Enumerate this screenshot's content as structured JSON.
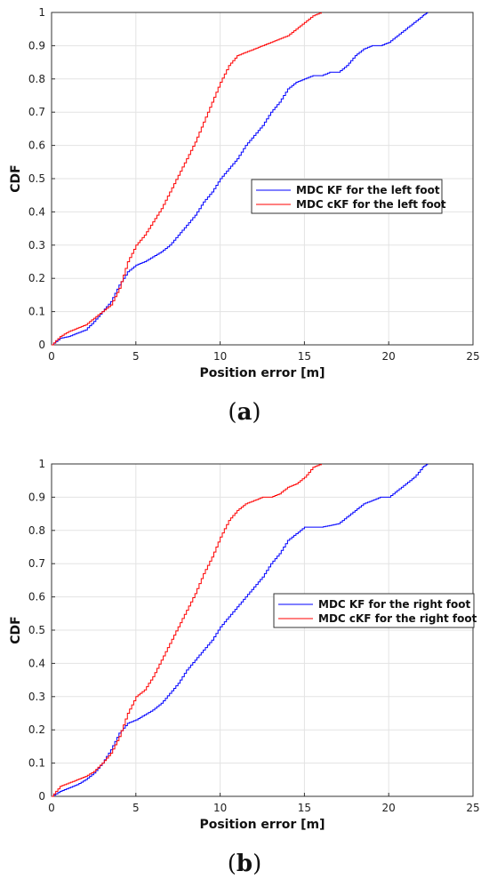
{
  "chart_data": [
    {
      "type": "line",
      "caption": "(a)",
      "caption_letter": "a",
      "xlabel": "Position error [m]",
      "ylabel": "CDF",
      "xlim": [
        0,
        25
      ],
      "ylim": [
        0,
        1
      ],
      "xticks": [
        "0",
        "5",
        "10",
        "15",
        "20",
        "25"
      ],
      "yticks": [
        "0",
        "0.1",
        "0.2",
        "0.3",
        "0.4",
        "0.5",
        "0.6",
        "0.7",
        "0.8",
        "0.9",
        "1"
      ],
      "grid": true,
      "legend_position": "center-right",
      "series": [
        {
          "name": "MDC KF for the left foot",
          "color": "#0000ff",
          "x": [
            0,
            0.5,
            1,
            1.5,
            2,
            2.5,
            3,
            3.5,
            4,
            4.5,
            5,
            5.5,
            6,
            6.5,
            7,
            7.5,
            8,
            8.5,
            9,
            9.5,
            10,
            10.5,
            11,
            11.5,
            12,
            12.5,
            13,
            13.5,
            14,
            14.5,
            15,
            15.5,
            16,
            16.5,
            17,
            17.5,
            18,
            18.5,
            19,
            19.5,
            20,
            20.5,
            21,
            21.5,
            22,
            22.3
          ],
          "y": [
            0.0,
            0.02,
            0.025,
            0.035,
            0.045,
            0.07,
            0.1,
            0.13,
            0.18,
            0.22,
            0.24,
            0.25,
            0.265,
            0.28,
            0.3,
            0.33,
            0.36,
            0.39,
            0.43,
            0.46,
            0.5,
            0.53,
            0.56,
            0.6,
            0.63,
            0.66,
            0.7,
            0.73,
            0.77,
            0.79,
            0.8,
            0.81,
            0.81,
            0.82,
            0.82,
            0.84,
            0.87,
            0.89,
            0.9,
            0.9,
            0.91,
            0.93,
            0.95,
            0.97,
            0.99,
            1.0
          ]
        },
        {
          "name": "MDC cKF for the left foot",
          "color": "#ff0000",
          "x": [
            0,
            0.5,
            1,
            1.5,
            2,
            2.5,
            3,
            3.5,
            4,
            4.5,
            5,
            5.5,
            6,
            6.5,
            7,
            7.5,
            8,
            8.5,
            9,
            9.5,
            10,
            10.5,
            11,
            11.5,
            12,
            12.5,
            13,
            13.5,
            14,
            14.5,
            15,
            15.5,
            16
          ],
          "y": [
            0.0,
            0.025,
            0.04,
            0.05,
            0.06,
            0.08,
            0.1,
            0.12,
            0.17,
            0.25,
            0.3,
            0.33,
            0.37,
            0.41,
            0.46,
            0.51,
            0.56,
            0.61,
            0.67,
            0.73,
            0.79,
            0.84,
            0.87,
            0.88,
            0.89,
            0.9,
            0.91,
            0.92,
            0.93,
            0.95,
            0.97,
            0.99,
            1.0
          ]
        }
      ]
    },
    {
      "type": "line",
      "caption": "(b)",
      "caption_letter": "b",
      "xlabel": "Position error [m]",
      "ylabel": "CDF",
      "xlim": [
        0,
        25
      ],
      "ylim": [
        0,
        1
      ],
      "xticks": [
        "0",
        "5",
        "10",
        "15",
        "20",
        "25"
      ],
      "yticks": [
        "0",
        "0.1",
        "0.2",
        "0.3",
        "0.4",
        "0.5",
        "0.6",
        "0.7",
        "0.8",
        "0.9",
        "1"
      ],
      "grid": true,
      "legend_position": "center-right",
      "series": [
        {
          "name": "MDC KF for the right foot",
          "color": "#0000ff",
          "x": [
            0,
            0.5,
            1,
            1.5,
            2,
            2.5,
            3,
            3.5,
            4,
            4.5,
            5,
            5.5,
            6,
            6.5,
            7,
            7.5,
            8,
            8.5,
            9,
            9.5,
            10,
            10.5,
            11,
            11.5,
            12,
            12.5,
            13,
            13.5,
            14,
            14.5,
            15,
            15.5,
            16,
            16.5,
            17,
            17.5,
            18,
            18.5,
            19,
            19.5,
            20,
            20.5,
            21,
            21.5,
            22,
            22.3
          ],
          "y": [
            0.0,
            0.015,
            0.025,
            0.035,
            0.05,
            0.07,
            0.1,
            0.14,
            0.19,
            0.22,
            0.23,
            0.245,
            0.26,
            0.28,
            0.31,
            0.34,
            0.38,
            0.41,
            0.44,
            0.47,
            0.51,
            0.54,
            0.57,
            0.6,
            0.63,
            0.66,
            0.7,
            0.73,
            0.77,
            0.79,
            0.81,
            0.81,
            0.81,
            0.815,
            0.82,
            0.84,
            0.86,
            0.88,
            0.89,
            0.9,
            0.9,
            0.92,
            0.94,
            0.96,
            0.99,
            1.0
          ]
        },
        {
          "name": "MDC cKF for the right foot",
          "color": "#ff0000",
          "x": [
            0,
            0.5,
            1,
            1.5,
            2,
            2.5,
            3,
            3.5,
            4,
            4.5,
            5,
            5.5,
            6,
            6.5,
            7,
            7.5,
            8,
            8.5,
            9,
            9.5,
            10,
            10.5,
            11,
            11.5,
            12,
            12.5,
            13,
            13.5,
            14,
            14.5,
            15,
            15.5,
            16
          ],
          "y": [
            0.0,
            0.03,
            0.04,
            0.05,
            0.06,
            0.075,
            0.1,
            0.13,
            0.18,
            0.25,
            0.3,
            0.32,
            0.36,
            0.41,
            0.46,
            0.51,
            0.56,
            0.61,
            0.67,
            0.72,
            0.78,
            0.83,
            0.86,
            0.88,
            0.89,
            0.9,
            0.9,
            0.91,
            0.93,
            0.94,
            0.96,
            0.99,
            1.0
          ]
        }
      ]
    }
  ]
}
